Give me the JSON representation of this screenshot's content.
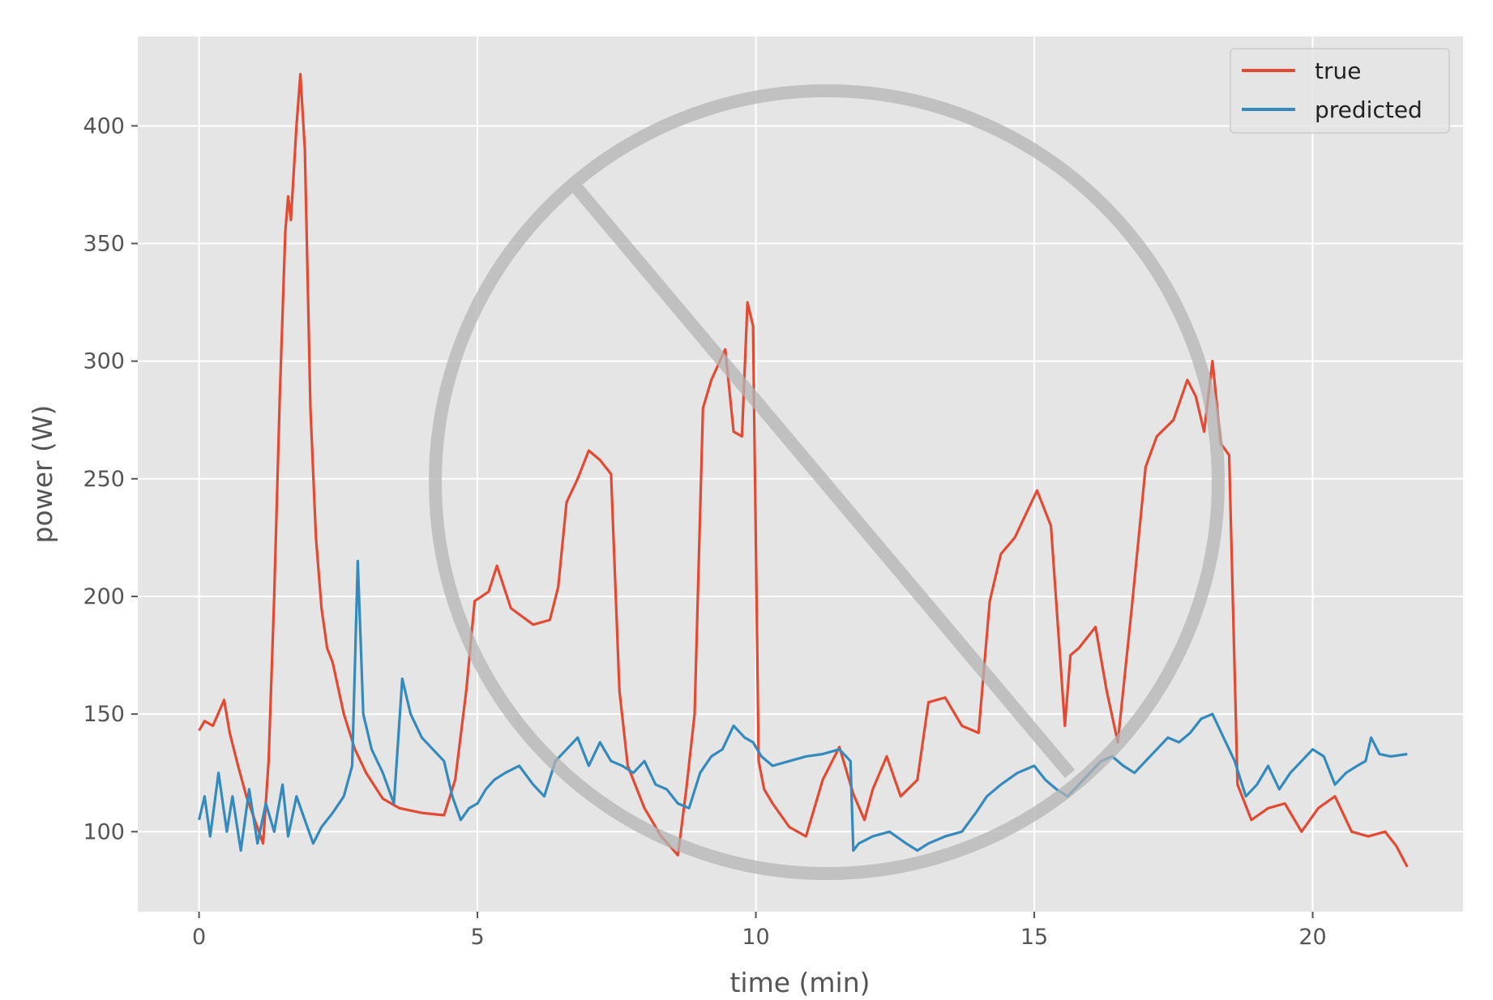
{
  "chart_data": {
    "type": "line",
    "title": "",
    "xlabel": "time (min)",
    "ylabel": "power (W)",
    "xlim": [
      -1.1,
      22.7
    ],
    "ylim": [
      66,
      438
    ],
    "xticks": [
      0,
      5,
      10,
      15,
      20
    ],
    "yticks": [
      100,
      150,
      200,
      250,
      300,
      350,
      400
    ],
    "grid": true,
    "legend_position": "top-right",
    "watermark": "prohibition-sign",
    "colors": {
      "plot_background": "#e5e5e5",
      "grid": "#ffffff",
      "tick_text": "#555555",
      "watermark": "#bdbdbd"
    },
    "series": [
      {
        "name": "true",
        "color": "#e24a33",
        "x": [
          0,
          0.1,
          0.25,
          0.45,
          0.55,
          0.7,
          0.85,
          1.0,
          1.15,
          1.25,
          1.35,
          1.45,
          1.55,
          1.6,
          1.65,
          1.75,
          1.82,
          1.9,
          2.0,
          2.1,
          2.2,
          2.3,
          2.4,
          2.6,
          2.8,
          3.0,
          3.3,
          3.6,
          4.0,
          4.4,
          4.6,
          4.8,
          4.95,
          5.2,
          5.35,
          5.6,
          6.0,
          6.3,
          6.45,
          6.6,
          6.8,
          7.0,
          7.2,
          7.4,
          7.55,
          7.7,
          8.0,
          8.3,
          8.6,
          8.75,
          8.9,
          9.05,
          9.2,
          9.45,
          9.6,
          9.75,
          9.85,
          9.95,
          10.05,
          10.15,
          10.3,
          10.6,
          10.9,
          11.2,
          11.5,
          11.75,
          11.95,
          12.1,
          12.35,
          12.6,
          12.9,
          13.1,
          13.4,
          13.7,
          14.0,
          14.2,
          14.4,
          14.65,
          14.85,
          15.05,
          15.3,
          15.55,
          15.65,
          15.8,
          16.1,
          16.3,
          16.5,
          16.75,
          17.0,
          17.2,
          17.5,
          17.75,
          17.9,
          18.05,
          18.2,
          18.35,
          18.5,
          18.65,
          18.9,
          19.2,
          19.5,
          19.8,
          20.1,
          20.4,
          20.7,
          21.0,
          21.3,
          21.5,
          21.7
        ],
        "values": [
          143,
          147,
          145,
          156,
          142,
          128,
          115,
          105,
          95,
          130,
          200,
          285,
          355,
          370,
          360,
          400,
          422,
          390,
          280,
          225,
          195,
          178,
          172,
          150,
          135,
          125,
          114,
          110,
          108,
          107,
          122,
          160,
          198,
          202,
          213,
          195,
          188,
          190,
          204,
          240,
          250,
          262,
          258,
          252,
          160,
          128,
          110,
          98,
          90,
          118,
          150,
          280,
          292,
          305,
          270,
          268,
          325,
          315,
          130,
          118,
          112,
          102,
          98,
          122,
          136,
          116,
          105,
          118,
          132,
          115,
          122,
          155,
          157,
          145,
          142,
          198,
          218,
          225,
          235,
          245,
          230,
          145,
          175,
          178,
          187,
          160,
          138,
          195,
          255,
          268,
          275,
          292,
          285,
          270,
          300,
          265,
          260,
          120,
          105,
          110,
          112,
          100,
          110,
          115,
          100,
          98,
          100,
          94,
          85
        ]
      },
      {
        "name": "predicted",
        "color": "#348abd",
        "x": [
          0,
          0.1,
          0.2,
          0.35,
          0.5,
          0.6,
          0.75,
          0.9,
          1.05,
          1.2,
          1.35,
          1.5,
          1.6,
          1.75,
          1.9,
          2.05,
          2.2,
          2.4,
          2.6,
          2.75,
          2.85,
          2.95,
          3.1,
          3.3,
          3.5,
          3.65,
          3.8,
          4.0,
          4.2,
          4.4,
          4.55,
          4.7,
          4.85,
          5.0,
          5.15,
          5.3,
          5.5,
          5.75,
          6.0,
          6.2,
          6.4,
          6.6,
          6.8,
          7.0,
          7.2,
          7.4,
          7.6,
          7.8,
          8.0,
          8.2,
          8.4,
          8.6,
          8.8,
          9.0,
          9.2,
          9.4,
          9.6,
          9.8,
          9.95,
          10.1,
          10.3,
          10.6,
          10.9,
          11.2,
          11.5,
          11.7,
          11.75,
          11.85,
          12.1,
          12.4,
          12.7,
          12.9,
          13.1,
          13.4,
          13.7,
          13.95,
          14.15,
          14.4,
          14.7,
          15.0,
          15.2,
          15.4,
          15.6,
          15.8,
          16.0,
          16.2,
          16.4,
          16.6,
          16.8,
          17.0,
          17.2,
          17.4,
          17.6,
          17.8,
          18.0,
          18.2,
          18.4,
          18.6,
          18.8,
          19.0,
          19.2,
          19.4,
          19.6,
          19.8,
          20.0,
          20.2,
          20.4,
          20.6,
          20.8,
          20.95,
          21.05,
          21.2,
          21.4,
          21.7
        ],
        "values": [
          105,
          115,
          98,
          125,
          100,
          115,
          92,
          118,
          95,
          112,
          100,
          120,
          98,
          115,
          105,
          95,
          102,
          108,
          115,
          128,
          215,
          150,
          135,
          125,
          112,
          165,
          150,
          140,
          135,
          130,
          115,
          105,
          110,
          112,
          118,
          122,
          125,
          128,
          120,
          115,
          130,
          135,
          140,
          128,
          138,
          130,
          128,
          125,
          130,
          120,
          118,
          112,
          110,
          125,
          132,
          135,
          145,
          140,
          138,
          132,
          128,
          130,
          132,
          133,
          135,
          130,
          92,
          95,
          98,
          100,
          95,
          92,
          95,
          98,
          100,
          108,
          115,
          120,
          125,
          128,
          122,
          118,
          115,
          120,
          125,
          130,
          132,
          128,
          125,
          130,
          135,
          140,
          138,
          142,
          148,
          150,
          140,
          130,
          115,
          120,
          128,
          118,
          125,
          130,
          135,
          132,
          120,
          125,
          128,
          130,
          140,
          133,
          132,
          133
        ]
      }
    ]
  }
}
